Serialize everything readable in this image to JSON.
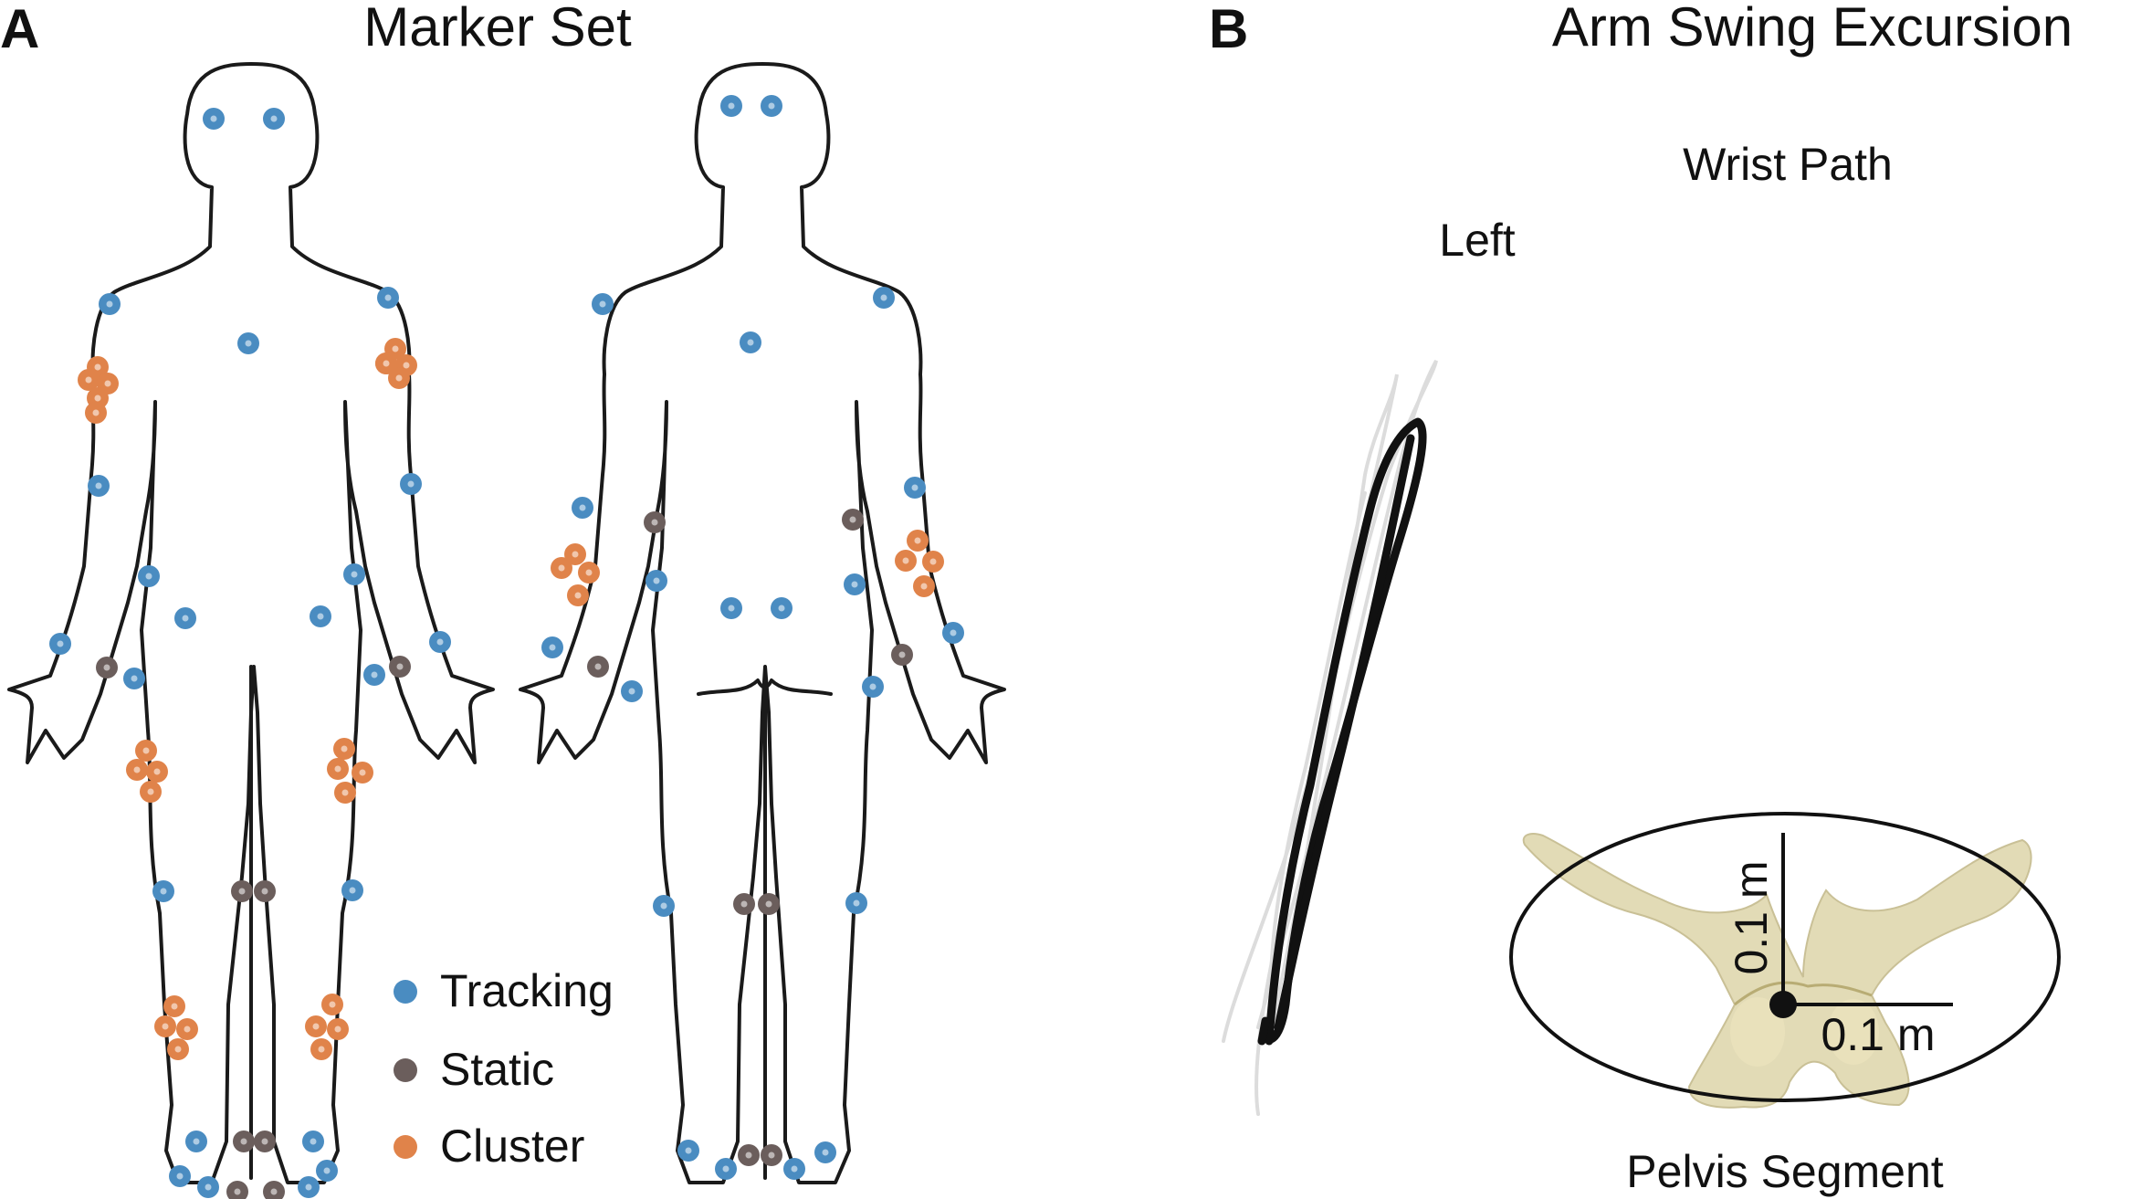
{
  "panel_a": {
    "letter": "A",
    "title": "Marker Set",
    "legend": [
      {
        "label": "Tracking",
        "color": "#4a8cc1"
      },
      {
        "label": "Static",
        "color": "#6b5e5c"
      },
      {
        "label": "Cluster",
        "color": "#e0834a"
      }
    ]
  },
  "panel_b": {
    "letter": "B",
    "title": "Arm Swing Excursion",
    "wrist_path_label": "Wrist Path",
    "side_label": "Left",
    "scale_vertical": "0.1 m",
    "scale_horizontal": "0.1 m",
    "pelvis_label": "Pelvis Segment"
  },
  "colors": {
    "tracking": "#4a8cc1",
    "static": "#6b5e5c",
    "cluster": "#e0834a",
    "wrist_path_main": "#111111",
    "wrist_path_faint": "#dcdcdc",
    "pelvis_bone": "#d9cf9e"
  },
  "icons": [
    "human-front-outline-icon",
    "human-back-outline-icon",
    "pelvis-bone-icon"
  ]
}
